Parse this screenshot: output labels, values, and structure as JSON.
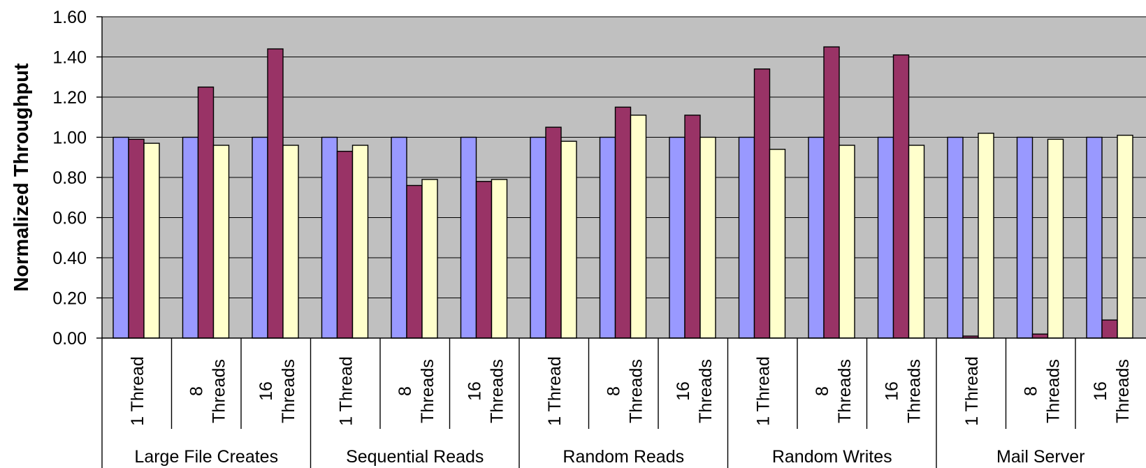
{
  "chart_data": {
    "type": "bar",
    "ylabel": "Normalized Throughput",
    "ylim": [
      0,
      1.6
    ],
    "yticks": [
      "0.00",
      "0.20",
      "0.40",
      "0.60",
      "0.80",
      "1.00",
      "1.20",
      "1.40",
      "1.60"
    ],
    "grid": true,
    "groups": [
      {
        "label": "Large File Creates",
        "categories": [
          [
            "1 Thread"
          ],
          [
            "8",
            "Threads"
          ],
          [
            "16",
            "Threads"
          ]
        ]
      },
      {
        "label": "Sequential Reads",
        "categories": [
          [
            "1 Thread"
          ],
          [
            "8",
            "Threads"
          ],
          [
            "16",
            "Threads"
          ]
        ]
      },
      {
        "label": "Random Reads",
        "categories": [
          [
            "1 Thread"
          ],
          [
            "8",
            "Threads"
          ],
          [
            "16",
            "Threads"
          ]
        ]
      },
      {
        "label": "Random Writes",
        "categories": [
          [
            "1 Thread"
          ],
          [
            "8",
            "Threads"
          ],
          [
            "16",
            "Threads"
          ]
        ]
      },
      {
        "label": "Mail Server",
        "categories": [
          [
            "1 Thread"
          ],
          [
            "8",
            "Threads"
          ],
          [
            "16",
            "Threads"
          ]
        ]
      }
    ],
    "series": [
      {
        "color": "#9999ff",
        "values": [
          1.0,
          1.0,
          1.0,
          1.0,
          1.0,
          1.0,
          1.0,
          1.0,
          1.0,
          1.0,
          1.0,
          1.0,
          1.0,
          1.0,
          1.0
        ]
      },
      {
        "color": "#993366",
        "values": [
          0.99,
          1.25,
          1.44,
          0.93,
          0.76,
          0.78,
          1.05,
          1.15,
          1.11,
          1.34,
          1.45,
          1.41,
          0.01,
          0.02,
          0.09
        ]
      },
      {
        "color": "#ffffcc",
        "values": [
          0.97,
          0.96,
          0.96,
          0.96,
          0.79,
          0.79,
          0.98,
          1.11,
          1.0,
          0.94,
          0.96,
          0.96,
          1.02,
          0.99,
          1.01
        ]
      }
    ],
    "colors": {
      "plot_background": "#c0c0c0",
      "gridline": "#000000"
    }
  }
}
